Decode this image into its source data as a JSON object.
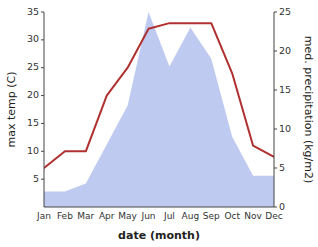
{
  "chart_data": {
    "type": "line",
    "xlabel": "date (month)",
    "ylabel": "max temp (C)",
    "y2label": "med. precipitation (kg/m2)",
    "categories": [
      "Jan",
      "Feb",
      "Mar",
      "Apr",
      "May",
      "Jun",
      "Jul",
      "Aug",
      "Sep",
      "Oct",
      "Nov",
      "Dec"
    ],
    "series": [
      {
        "type": "area",
        "axis": "y2",
        "color": "#b8c4ee",
        "values": [
          2,
          2,
          3,
          8,
          13,
          25,
          18,
          23,
          19,
          9,
          4,
          4
        ]
      },
      {
        "type": "line",
        "color": "#b03030",
        "values": [
          7,
          10,
          10,
          20,
          25,
          32,
          33,
          33,
          33,
          24,
          11,
          9
        ]
      }
    ],
    "ylim": [
      0,
      35
    ],
    "yticks": [
      5,
      10,
      15,
      20,
      25,
      30,
      35
    ],
    "y2lim": [
      0,
      25
    ],
    "y2ticks": [
      0,
      5,
      10,
      15,
      20,
      25
    ],
    "grid": false
  }
}
